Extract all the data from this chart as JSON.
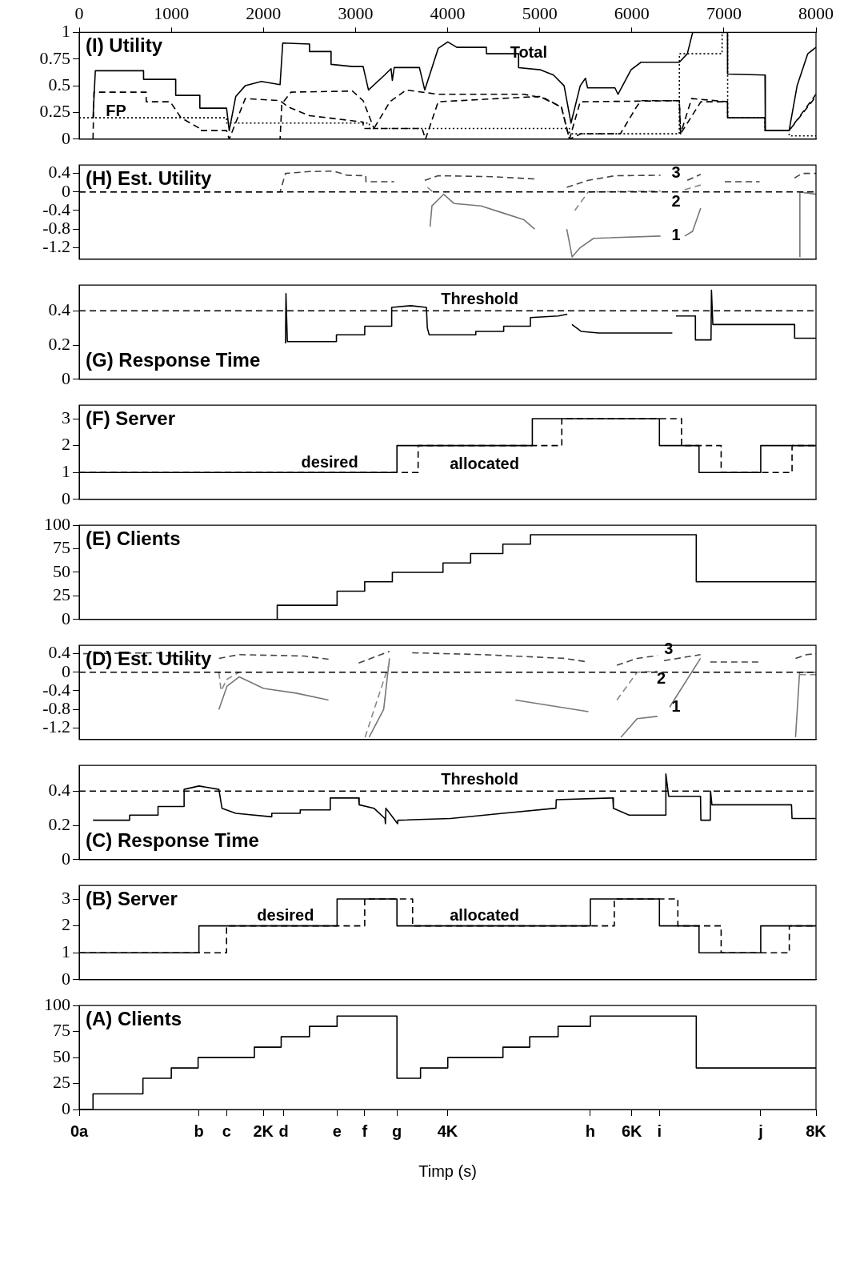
{
  "chart_data": [
    {
      "type": "line",
      "title": "(I) Utility",
      "xlim": [
        0,
        8000
      ],
      "x2lim": [
        0,
        8000
      ],
      "x2ticks": [
        0,
        1000,
        2000,
        3000,
        4000,
        5000,
        6000,
        7000,
        8000
      ],
      "ylim": [
        0,
        1
      ],
      "yticks": [
        0,
        0.25,
        0.5,
        0.75,
        1
      ],
      "tick_labels": "y",
      "series": [
        {
          "name": "Total",
          "color": "#000000",
          "line_style": "solid",
          "x": [
            150,
            175,
            698,
            699,
            1047,
            1048,
            1309,
            1310,
            1600,
            1629,
            1700,
            1803,
            1978,
            2181,
            2210,
            2500,
            2501,
            2734,
            2735,
            2967,
            3083,
            3141,
            3316,
            3386,
            3400,
            3420,
            3694,
            3752,
            3898,
            4002,
            4100,
            4421,
            4422,
            4770,
            4771,
            5003,
            5150,
            5265,
            5340,
            5440,
            5497,
            5520,
            5817,
            5850,
            5992,
            6100,
            6516,
            6603,
            6661,
            7039,
            7040,
            7446,
            7450,
            7708,
            7795,
            7911,
            8000
          ],
          "values": [
            0.2,
            0.64,
            0.64,
            0.56,
            0.56,
            0.41,
            0.41,
            0.29,
            0.29,
            0.08,
            0.4,
            0.5,
            0.54,
            0.51,
            0.9,
            0.89,
            0.82,
            0.82,
            0.7,
            0.68,
            0.68,
            0.46,
            0.6,
            0.66,
            0.55,
            0.67,
            0.67,
            0.46,
            0.85,
            0.91,
            0.86,
            0.86,
            0.8,
            0.8,
            0.67,
            0.65,
            0.6,
            0.5,
            0.15,
            0.5,
            0.57,
            0.48,
            0.48,
            0.42,
            0.65,
            0.72,
            0.72,
            0.8,
            1,
            1,
            0.61,
            0.6,
            0.08,
            0.08,
            0.5,
            0.8,
            0.86
          ]
        },
        {
          "color": "#000000",
          "line_style": "dashed",
          "x": [
            150,
            160,
            727,
            728,
            989,
            1105,
            1309,
            1310,
            1600,
            1629,
            1803,
            2181,
            2270,
            2500,
            3083,
            3084,
            3200,
            3374,
            3549,
            3898,
            4829,
            5061,
            5236,
            5323,
            5450,
            5876,
            6050,
            6100,
            6516,
            6530,
            6750,
            7039,
            7040,
            7446,
            7447,
            7708,
            8000
          ],
          "values": [
            0,
            0.44,
            0.44,
            0.35,
            0.35,
            0.2,
            0.1,
            0.08,
            0.08,
            0,
            0.38,
            0.36,
            0.3,
            0.22,
            0.16,
            0.1,
            0.1,
            0.35,
            0.46,
            0.42,
            0.42,
            0.38,
            0.3,
            0,
            0.05,
            0.05,
            0.3,
            0.36,
            0.36,
            0.05,
            0.35,
            0.35,
            0.2,
            0.2,
            0.08,
            0.08,
            0.4
          ]
        },
        {
          "color": "#000000",
          "line_style": "dashed",
          "x": [
            0,
            2181,
            2200,
            2300,
            2967,
            3083,
            3200,
            3723,
            3760,
            3898,
            5000,
            5236,
            5323,
            5440,
            6516,
            6530,
            6650,
            7039,
            7040,
            7446,
            7447,
            7708,
            8000
          ],
          "values": [
            0,
            0,
            0.33,
            0.44,
            0.45,
            0.36,
            0.1,
            0.1,
            0,
            0.35,
            0.4,
            0.3,
            0,
            0.35,
            0.36,
            0.05,
            0.38,
            0.35,
            0.2,
            0.2,
            0.08,
            0.08,
            0.42
          ]
        },
        {
          "name": "FP",
          "color": "#000000",
          "line_style": "dotted",
          "x": [
            0,
            1600,
            1601,
            3150,
            3151,
            5323,
            5324,
            6516,
            6517,
            6980,
            6981,
            7040,
            7041,
            7446,
            7447,
            7708,
            7709,
            8000
          ],
          "values": [
            0.2,
            0.2,
            0.15,
            0.15,
            0.1,
            0.1,
            0.05,
            0.05,
            0.8,
            0.8,
            1,
            1,
            0.2,
            0.2,
            0.08,
            0.08,
            0.03,
            0.03
          ]
        }
      ],
      "legend": false
    },
    {
      "type": "line",
      "title": "(H) Est. Utility",
      "xlim": [
        0,
        8000
      ],
      "ylim": [
        -1.45,
        0.58
      ],
      "yticks": [
        0.4,
        0,
        -0.4,
        -0.8,
        -1.2
      ],
      "tick_labels": "y",
      "ref_lines": [
        {
          "axis": "y",
          "value": 0,
          "line_style": "dashed",
          "color": "#000000"
        }
      ],
      "series": [
        {
          "name": "3",
          "color": "#444444",
          "line_style": "dashed",
          "x": [
            0,
            2181,
            2240,
            2500,
            2763,
            2909,
            3112,
            3113,
            3420,
            3421,
            3752,
            3898,
            4480,
            4945,
            4946,
            5294,
            5527,
            5817,
            6312,
            6313,
            6603,
            6748,
            6749,
            7010,
            7388,
            7389,
            7766,
            7853,
            8000
          ],
          "values": [
            0,
            0,
            0.4,
            0.44,
            0.45,
            0.36,
            0.35,
            0.22,
            0.22,
            null,
            0.25,
            0.35,
            0.33,
            0.28,
            null,
            0.1,
            0.25,
            0.35,
            0.36,
            null,
            0.25,
            0.38,
            null,
            0.22,
            0.22,
            null,
            0.3,
            0.4,
            0.4
          ]
        },
        {
          "name": "2",
          "color": "#888888",
          "line_style": "dashed",
          "x": [
            3781,
            3840,
            3841,
            5381,
            5527,
            6312,
            6313,
            6574,
            6748,
            6749,
            7824,
            8000
          ],
          "values": [
            0.1,
            0,
            null,
            -0.4,
            0,
            0.02,
            null,
            0.05,
            0.15,
            null,
            0,
            -0.05
          ]
        },
        {
          "name": "1",
          "color": "#777777",
          "line_style": "solid",
          "x": [
            3810,
            3830,
            3956,
            4072,
            4363,
            4596,
            4829,
            4945,
            4946,
            5294,
            5352,
            5440,
            5585,
            6312,
            6313,
            6574,
            6660,
            6748,
            6749,
            7824,
            7825,
            8000
          ],
          "values": [
            -0.75,
            -0.3,
            -0.05,
            -0.25,
            -0.3,
            -0.45,
            -0.6,
            -0.8,
            null,
            -0.8,
            -1.4,
            -1.2,
            -1.0,
            -0.95,
            null,
            -0.95,
            -0.85,
            -0.35,
            null,
            -1.4,
            0,
            -0.05
          ]
        }
      ],
      "legend": false
    },
    {
      "type": "line",
      "title": "(G) Response Time",
      "xlim": [
        0,
        8000
      ],
      "ylim": [
        0,
        0.55
      ],
      "yticks": [
        0,
        0.2,
        0.4
      ],
      "tick_labels": "y",
      "ref_lines": [
        {
          "axis": "y",
          "value": 0.4,
          "label": "Threshold",
          "line_style": "dashed",
          "color": "#000000"
        }
      ],
      "series": [
        {
          "color": "#000000",
          "line_style": "solid",
          "x": [
            2240,
            2245,
            2260,
            2792,
            2793,
            3100,
            3101,
            3392,
            3393,
            3600,
            3770,
            3780,
            3800,
            4305,
            4306,
            4608,
            4609,
            4898,
            4899,
            5200,
            5300,
            5311,
            5350,
            5450,
            5640,
            6440,
            6445,
            6480,
            6690,
            6691,
            6860,
            6865,
            6880,
            7767,
            7768,
            8000
          ],
          "values": [
            0.21,
            0.5,
            0.22,
            0.22,
            0.26,
            0.26,
            0.31,
            0.31,
            0.42,
            0.43,
            0.42,
            0.3,
            0.26,
            0.26,
            0.28,
            0.28,
            0.31,
            0.31,
            0.36,
            0.37,
            0.38,
            null,
            0.32,
            0.28,
            0.27,
            0.27,
            null,
            0.37,
            0.37,
            0.23,
            0.23,
            0.52,
            0.32,
            0.32,
            0.24,
            0.24
          ]
        }
      ]
    },
    {
      "type": "step",
      "title": "(F) Server",
      "xlim": [
        0,
        8000
      ],
      "ylim": [
        0,
        3.5
      ],
      "yticks": [
        0,
        1,
        2,
        3
      ],
      "tick_labels": "y",
      "series": [
        {
          "name": "desired",
          "color": "#000000",
          "line_style": "solid",
          "x": [
            0,
            3450,
            4920,
            6300,
            6730,
            7400,
            8000
          ],
          "values": [
            1,
            2,
            3,
            2,
            1,
            2,
            2
          ]
        },
        {
          "name": "allocated",
          "color": "#000000",
          "line_style": "dashed",
          "x": [
            0,
            3680,
            5240,
            6540,
            6970,
            7740,
            8000
          ],
          "values": [
            1,
            2,
            3,
            2,
            1,
            2,
            2
          ]
        }
      ],
      "legend": false
    },
    {
      "type": "step",
      "title": "(E) Clients",
      "xlim": [
        0,
        8000
      ],
      "ylim": [
        0,
        100
      ],
      "yticks": [
        0,
        25,
        50,
        75,
        100
      ],
      "tick_labels": "y",
      "series": [
        {
          "color": "#000000",
          "line_style": "solid",
          "x": [
            0,
            2150,
            2800,
            3100,
            3400,
            3950,
            4250,
            4600,
            4900,
            6700,
            8000
          ],
          "values": [
            0,
            15,
            30,
            40,
            50,
            60,
            70,
            80,
            90,
            40,
            40
          ]
        }
      ]
    },
    {
      "type": "line",
      "title": "(D) Est. Utility",
      "xlim": [
        0,
        8000
      ],
      "ylim": [
        -1.45,
        0.58
      ],
      "yticks": [
        0.4,
        0,
        -0.4,
        -0.8,
        -1.2
      ],
      "tick_labels": "y",
      "ref_lines": [
        {
          "axis": "y",
          "value": 0,
          "line_style": "dashed",
          "color": "#000000"
        }
      ],
      "series": [
        {
          "name": "3",
          "color": "#444444",
          "line_style": "dashed",
          "x": [
            44,
            855,
            900,
            1138,
            1208,
            1209,
            1517,
            1737,
            2443,
            2707,
            2708,
            3034,
            3236,
            3369,
            3370,
            3616,
            4383,
            5265,
            5529,
            5530,
            5838,
            6058,
            6279,
            6280,
            6350,
            6746,
            6747,
            6852,
            7381,
            7382,
            7778,
            7900,
            8000
          ],
          "values": [
            0.4,
            0.42,
            0.36,
            0.34,
            0.22,
            null,
            0.3,
            0.38,
            0.35,
            0.28,
            null,
            0.2,
            0.35,
            0.45,
            null,
            0.42,
            0.38,
            0.3,
            0.22,
            null,
            0.15,
            0.3,
            0.36,
            null,
            0.25,
            0.38,
            null,
            0.22,
            0.22,
            null,
            0.3,
            0.38,
            0.4
          ]
        },
        {
          "name": "2",
          "color": "#888888",
          "line_style": "dashed",
          "x": [
            1517,
            1540,
            1605,
            1737,
            1738,
            3104,
            3236,
            3369,
            3370,
            5838,
            6058,
            6279,
            6280,
            7822,
            8000
          ],
          "values": [
            0,
            -0.4,
            -0.15,
            0,
            null,
            -1.4,
            -0.6,
            0.2,
            null,
            -0.6,
            0,
            0.02,
            null,
            -0.05,
            -0.05
          ]
        },
        {
          "name": "1",
          "color": "#777777",
          "line_style": "solid",
          "x": [
            1517,
            1605,
            1737,
            2002,
            2355,
            2707,
            2708,
            3148,
            3306,
            3369,
            3370,
            4735,
            5529,
            5530,
            5882,
            6058,
            6279,
            6280,
            6411,
            6746,
            6747,
            7778,
            7822,
            8000
          ],
          "values": [
            -0.8,
            -0.3,
            -0.1,
            -0.35,
            -0.45,
            -0.6,
            null,
            -1.4,
            -0.8,
            0.3,
            null,
            -0.6,
            -0.85,
            null,
            -1.4,
            -1.0,
            -0.95,
            null,
            -0.75,
            0.3,
            null,
            -1.4,
            0,
            0
          ]
        }
      ],
      "legend": false
    },
    {
      "type": "line",
      "title": "(C) Response Time",
      "xlim": [
        0,
        8000
      ],
      "ylim": [
        0,
        0.55
      ],
      "yticks": [
        0,
        0.2,
        0.4
      ],
      "tick_labels": "y",
      "ref_lines": [
        {
          "axis": "y",
          "value": 0.4,
          "label": "Threshold",
          "line_style": "dashed",
          "color": "#000000"
        }
      ],
      "series": [
        {
          "color": "#000000",
          "line_style": "solid",
          "x": [
            150,
            547,
            548,
            855,
            856,
            1138,
            1139,
            1300,
            1517,
            1550,
            1700,
            2090,
            2091,
            2399,
            2400,
            2725,
            2726,
            3034,
            3040,
            3200,
            3320,
            3325,
            3330,
            3457,
            3460,
            3465,
            4030,
            4600,
            5176,
            5180,
            5794,
            5800,
            5970,
            6367,
            6370,
            6400,
            6746,
            6750,
            6852,
            6855,
            6870,
            7734,
            7740,
            8000
          ],
          "values": [
            0.23,
            0.23,
            0.26,
            0.26,
            0.31,
            0.31,
            0.41,
            0.43,
            0.41,
            0.3,
            0.27,
            0.25,
            0.27,
            0.27,
            0.29,
            0.29,
            0.36,
            0.36,
            0.32,
            0.3,
            0.24,
            0.21,
            0.3,
            0.21,
            0.23,
            0.23,
            0.24,
            0.27,
            0.3,
            0.35,
            0.36,
            0.3,
            0.26,
            0.26,
            0.5,
            0.37,
            0.37,
            0.23,
            0.23,
            0.4,
            0.32,
            0.32,
            0.24,
            0.24
          ]
        }
      ]
    },
    {
      "type": "step",
      "title": "(B) Server",
      "xlim": [
        0,
        8000
      ],
      "ylim": [
        0,
        3.5
      ],
      "yticks": [
        0,
        1,
        2,
        3
      ],
      "tick_labels": "y",
      "series": [
        {
          "name": "desired",
          "color": "#000000",
          "line_style": "solid",
          "x": [
            0,
            1300,
            2800,
            3450,
            5550,
            6300,
            6730,
            7400,
            8000
          ],
          "values": [
            1,
            2,
            3,
            2,
            3,
            2,
            1,
            2,
            2
          ]
        },
        {
          "name": "allocated",
          "color": "#000000",
          "line_style": "dashed",
          "x": [
            0,
            1600,
            3100,
            3620,
            5810,
            6500,
            6970,
            7710,
            8000
          ],
          "values": [
            1,
            2,
            3,
            2,
            3,
            2,
            1,
            2,
            2
          ]
        }
      ],
      "legend": false
    },
    {
      "type": "step",
      "title": "(A) Clients",
      "xlim": [
        0,
        8000
      ],
      "ylim": [
        0,
        100
      ],
      "yticks": [
        0,
        25,
        50,
        75,
        100
      ],
      "xlabel": "Timp (s)",
      "xticks": [
        {
          "value": 0,
          "label": "0a"
        },
        {
          "value": 1300,
          "label": "b"
        },
        {
          "value": 1600,
          "label": "c"
        },
        {
          "value": 2000,
          "label": "2K"
        },
        {
          "value": 2220,
          "label": "d"
        },
        {
          "value": 2800,
          "label": "e"
        },
        {
          "value": 3100,
          "label": "f"
        },
        {
          "value": 3450,
          "label": "g"
        },
        {
          "value": 4000,
          "label": "4K"
        },
        {
          "value": 5550,
          "label": "h"
        },
        {
          "value": 6000,
          "label": "6K"
        },
        {
          "value": 6300,
          "label": "i"
        },
        {
          "value": 7400,
          "label": "j"
        },
        {
          "value": 8000,
          "label": "8K"
        }
      ],
      "series": [
        {
          "color": "#000000",
          "line_style": "solid",
          "x": [
            0,
            150,
            692,
            1000,
            1291,
            1902,
            2193,
            2500,
            2800,
            3450,
            3706,
            4002,
            4601,
            4892,
            5200,
            5550,
            6700,
            8000
          ],
          "values": [
            0,
            15,
            30,
            40,
            50,
            60,
            70,
            80,
            90,
            30,
            40,
            50,
            60,
            70,
            80,
            90,
            40,
            40
          ]
        }
      ]
    }
  ]
}
